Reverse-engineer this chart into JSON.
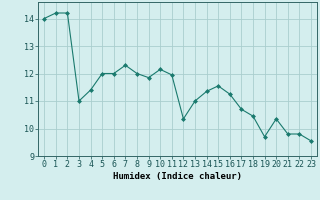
{
  "x": [
    0,
    1,
    2,
    3,
    4,
    5,
    6,
    7,
    8,
    9,
    10,
    11,
    12,
    13,
    14,
    15,
    16,
    17,
    18,
    19,
    20,
    21,
    22,
    23
  ],
  "y": [
    14.0,
    14.2,
    14.2,
    11.0,
    11.4,
    12.0,
    12.0,
    12.3,
    12.0,
    11.85,
    12.15,
    11.95,
    10.35,
    11.0,
    11.35,
    11.55,
    11.25,
    10.7,
    10.45,
    9.7,
    10.35,
    9.8,
    9.8,
    9.55
  ],
  "line_color": "#1a7a6e",
  "marker": "D",
  "marker_size": 2.0,
  "bg_color": "#d4eeee",
  "grid_color": "#aacece",
  "xlabel": "Humidex (Indice chaleur)",
  "xlabel_fontsize": 6.5,
  "tick_fontsize": 6.0,
  "ylim": [
    9,
    14.6
  ],
  "xlim": [
    -0.5,
    23.5
  ],
  "yticks": [
    9,
    10,
    11,
    12,
    13,
    14
  ],
  "xticks": [
    0,
    1,
    2,
    3,
    4,
    5,
    6,
    7,
    8,
    9,
    10,
    11,
    12,
    13,
    14,
    15,
    16,
    17,
    18,
    19,
    20,
    21,
    22,
    23
  ]
}
